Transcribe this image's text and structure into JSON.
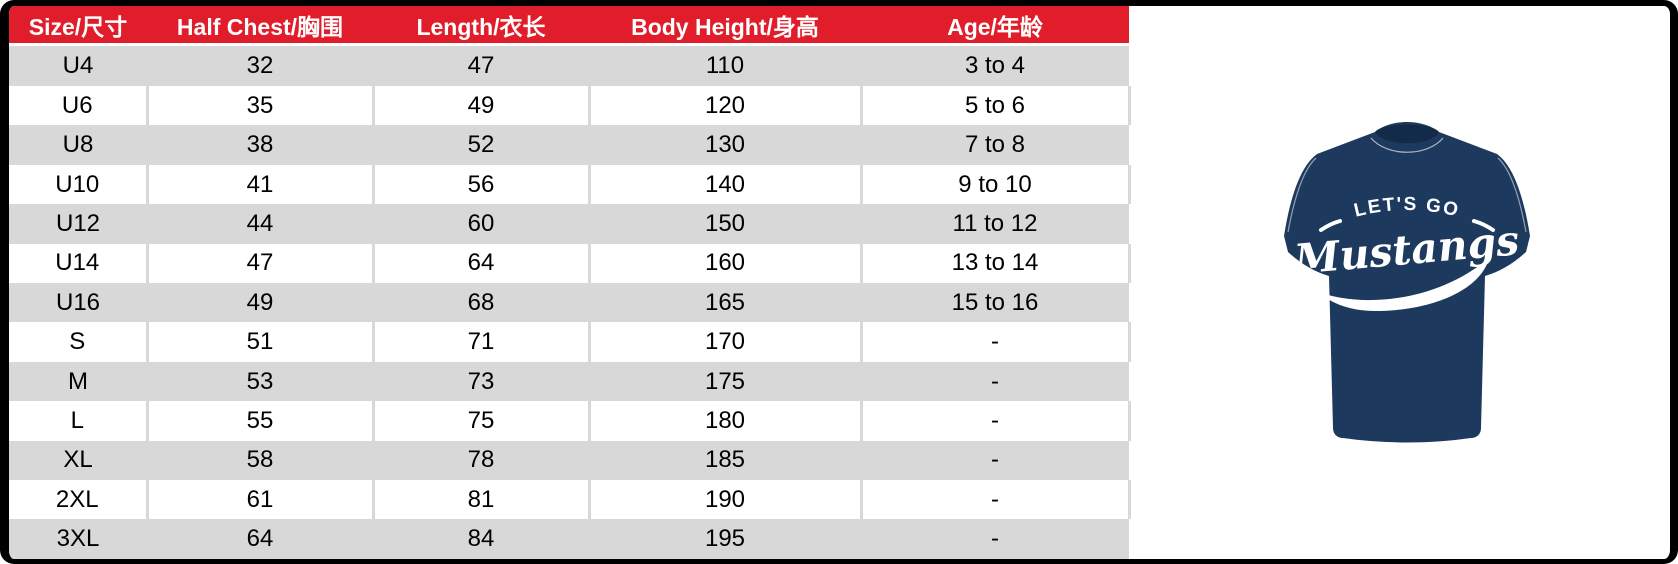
{
  "table": {
    "headers": [
      "Size/尺寸",
      "Half Chest/胸围",
      "Length/衣长",
      "Body Height/身高",
      "Age/年龄"
    ],
    "rows": [
      [
        "U4",
        "32",
        "47",
        "110",
        "3 to 4"
      ],
      [
        "U6",
        "35",
        "49",
        "120",
        "5 to 6"
      ],
      [
        "U8",
        "38",
        "52",
        "130",
        "7 to 8"
      ],
      [
        "U10",
        "41",
        "56",
        "140",
        "9 to 10"
      ],
      [
        "U12",
        "44",
        "60",
        "150",
        "11 to 12"
      ],
      [
        "U14",
        "47",
        "64",
        "160",
        "13 to 14"
      ],
      [
        "U16",
        "49",
        "68",
        "165",
        "15 to 16"
      ],
      [
        "S",
        "51",
        "71",
        "170",
        "-"
      ],
      [
        "M",
        "53",
        "73",
        "175",
        "-"
      ],
      [
        "L",
        "55",
        "75",
        "180",
        "-"
      ],
      [
        "XL",
        "58",
        "78",
        "185",
        "-"
      ],
      [
        "2XL",
        "61",
        "81",
        "190",
        "-"
      ],
      [
        "3XL",
        "64",
        "84",
        "195",
        "-"
      ]
    ]
  },
  "tshirt": {
    "print_line1": "LET'S GO",
    "print_line2": "Mustangs"
  },
  "colors": {
    "header_red": "#e11d2c",
    "row_gray": "#d8d8d8",
    "row_white": "#ffffff",
    "frame_black": "#000000",
    "shirt_navy": "#1d3a5e",
    "collar_navy": "#132b49",
    "seam_gray": "#a8b2bf",
    "print_white": "#ffffff"
  }
}
